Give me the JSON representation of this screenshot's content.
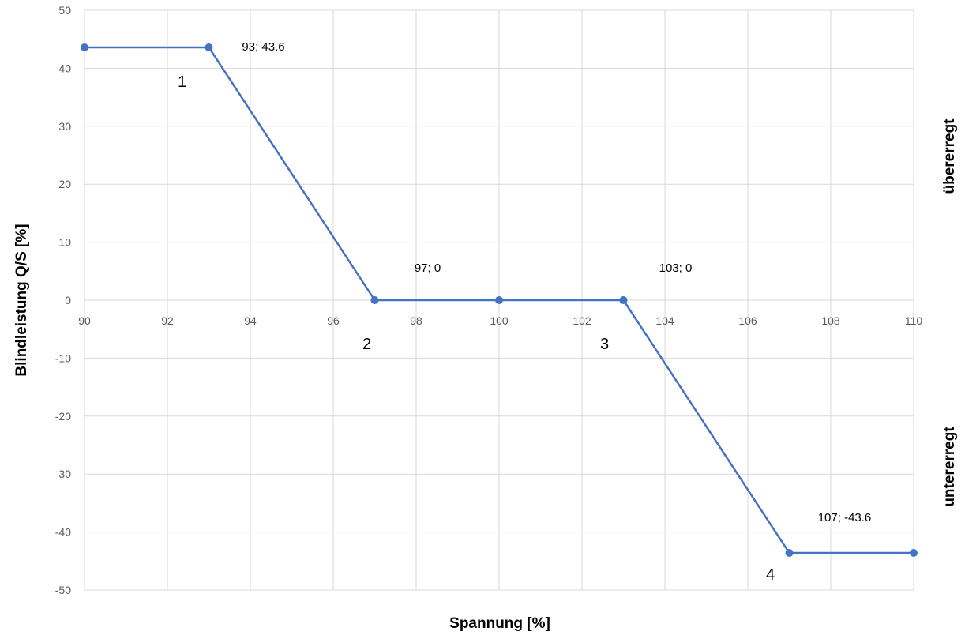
{
  "chart_data": {
    "type": "line",
    "xlabel": "Spannung [%]",
    "ylabel": "Blindleistung Q/S [%]",
    "xlim": [
      90,
      110
    ],
    "ylim": [
      -50,
      50
    ],
    "x_ticks": [
      90,
      92,
      94,
      96,
      98,
      100,
      102,
      104,
      106,
      108,
      110
    ],
    "y_ticks": [
      50,
      40,
      30,
      20,
      10,
      0,
      -10,
      -20,
      -30,
      -40,
      -50
    ],
    "grid": true,
    "series": [
      {
        "color": "#4472C4",
        "x": [
          90,
          93,
          97,
          100,
          103,
          107,
          110
        ],
        "y": [
          43.6,
          43.6,
          0,
          0,
          0,
          -43.6,
          -43.6
        ]
      }
    ],
    "data_labels": [
      "93; 43.6",
      "97; 0",
      "103; 0",
      "107; -43.6"
    ],
    "point_numbers": [
      "1",
      "2",
      "3",
      "4"
    ],
    "right_labels": {
      "top": "übererregt",
      "bottom": "untererregt"
    }
  }
}
